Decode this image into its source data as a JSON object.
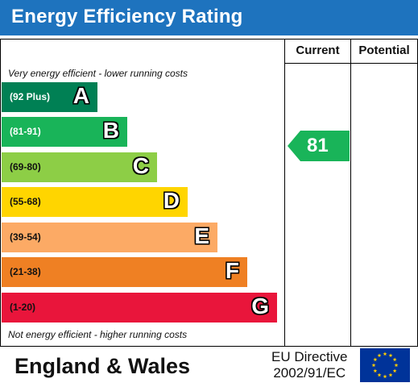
{
  "title": "Energy Efficiency Rating",
  "columns": {
    "current": "Current",
    "potential": "Potential"
  },
  "notes": {
    "top": "Very energy efficient - lower running costs",
    "bottom": "Not energy efficient - higher running costs"
  },
  "bands": [
    {
      "range": "(92 Plus)",
      "letter": "A",
      "color": "#008054",
      "range_color": "#ffffff"
    },
    {
      "range": "(81-91)",
      "letter": "B",
      "color": "#19b459",
      "range_color": "#ffffff"
    },
    {
      "range": "(69-80)",
      "letter": "C",
      "color": "#8dce46",
      "range_color": "#111111"
    },
    {
      "range": "(55-68)",
      "letter": "D",
      "color": "#ffd500",
      "range_color": "#111111"
    },
    {
      "range": "(39-54)",
      "letter": "E",
      "color": "#fcaa65",
      "range_color": "#111111"
    },
    {
      "range": "(21-38)",
      "letter": "F",
      "color": "#ef8023",
      "range_color": "#111111"
    },
    {
      "range": "(1-20)",
      "letter": "G",
      "color": "#e9153b",
      "range_color": "#111111"
    }
  ],
  "current_rating": {
    "value": "81",
    "band": "B",
    "color": "#19b459"
  },
  "potential_rating": null,
  "footer": {
    "region": "England & Wales",
    "directive_line1": "EU Directive",
    "directive_line2": "2002/91/EC",
    "flag_icon": "eu-flag-icon",
    "flag_color": "#003399",
    "star_color": "#ffcc00"
  },
  "header_color": "#1e73be"
}
